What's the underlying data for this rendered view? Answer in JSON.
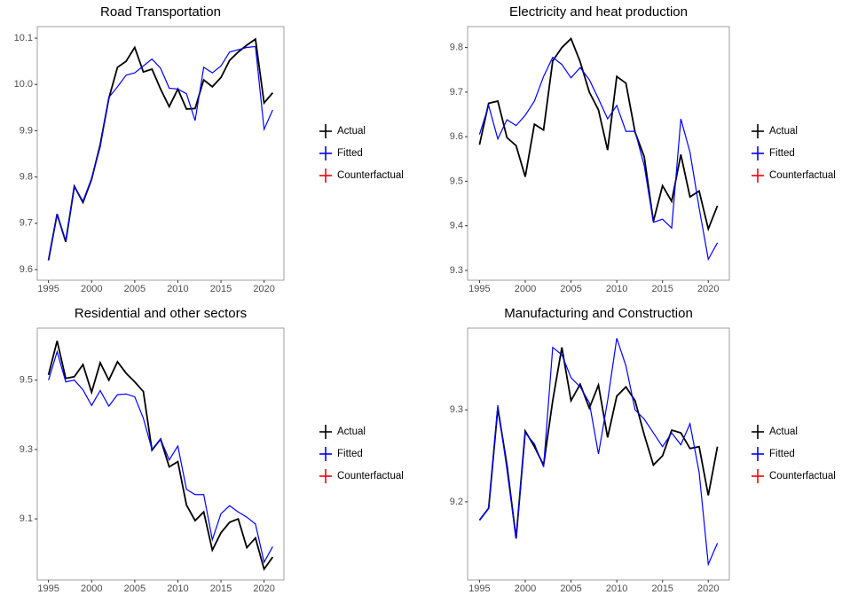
{
  "chart_data": [
    {
      "type": "line",
      "title": "Road Transportation",
      "x": [
        1995,
        1996,
        1997,
        1998,
        1999,
        2000,
        2001,
        2002,
        2003,
        2004,
        2005,
        2006,
        2007,
        2008,
        2009,
        2010,
        2011,
        2012,
        2013,
        2014,
        2015,
        2016,
        2017,
        2018,
        2019,
        2020,
        2021
      ],
      "series": [
        {
          "name": "Actual",
          "color": "#000000",
          "values": [
            9.62,
            9.72,
            9.66,
            9.78,
            9.745,
            9.795,
            9.87,
            9.97,
            10.037,
            10.05,
            10.08,
            10.027,
            10.033,
            9.99,
            9.952,
            9.99,
            9.947,
            9.948,
            10.01,
            9.995,
            10.015,
            10.052,
            10.07,
            10.085,
            10.098,
            9.96,
            9.982
          ]
        },
        {
          "name": "Fitted",
          "color": "#0000ff",
          "values": [
            9.62,
            9.72,
            9.662,
            9.778,
            9.748,
            9.797,
            9.865,
            9.972,
            9.995,
            10.02,
            10.025,
            10.04,
            10.055,
            10.035,
            9.992,
            9.99,
            9.98,
            9.922,
            10.037,
            10.025,
            10.04,
            10.07,
            10.075,
            10.08,
            10.082,
            9.903,
            9.945
          ]
        },
        {
          "name": "Counterfactual",
          "color": "#ff0000",
          "values": [
            null,
            null,
            null,
            null,
            null,
            null,
            null,
            null,
            null,
            null,
            null,
            null,
            null,
            null,
            null,
            null,
            null,
            null,
            null,
            null,
            null,
            null,
            null,
            null,
            null,
            null,
            null
          ]
        }
      ],
      "xlim": [
        1993.7,
        2022.3
      ],
      "xticks": [
        1995,
        2000,
        2005,
        2010,
        2015,
        2020
      ],
      "ylim": [
        9.577,
        10.125
      ],
      "yticks": [
        9.6,
        9.7,
        9.8,
        9.9,
        {
          "value": 10,
          "label": "10.0"
        },
        10.1
      ]
    },
    {
      "type": "line",
      "title": "Electricity and heat production",
      "x": [
        1995,
        1996,
        1997,
        1998,
        1999,
        2000,
        2001,
        2002,
        2003,
        2004,
        2005,
        2006,
        2007,
        2008,
        2009,
        2010,
        2011,
        2012,
        2013,
        2014,
        2015,
        2016,
        2017,
        2018,
        2019,
        2020,
        2021
      ],
      "series": [
        {
          "name": "Actual",
          "color": "#000000",
          "values": [
            9.582,
            9.675,
            9.68,
            9.598,
            9.58,
            9.51,
            9.628,
            9.615,
            9.77,
            9.8,
            9.82,
            9.768,
            9.7,
            9.66,
            9.57,
            9.735,
            9.72,
            9.61,
            9.555,
            9.41,
            9.49,
            9.455,
            9.56,
            9.465,
            9.478,
            9.393,
            9.445
          ]
        },
        {
          "name": "Fitted",
          "color": "#0000ff",
          "values": [
            9.605,
            9.67,
            9.595,
            9.638,
            9.625,
            9.648,
            9.68,
            9.735,
            9.778,
            9.762,
            9.732,
            9.755,
            9.728,
            9.685,
            9.64,
            9.67,
            9.612,
            9.612,
            9.535,
            9.408,
            9.415,
            9.395,
            9.64,
            9.565,
            9.44,
            9.325,
            9.362
          ]
        },
        {
          "name": "Counterfactual",
          "color": "#ff0000",
          "values": [
            null,
            null,
            null,
            null,
            null,
            null,
            null,
            null,
            null,
            null,
            null,
            null,
            null,
            null,
            null,
            null,
            null,
            null,
            null,
            null,
            null,
            null,
            null,
            null,
            null,
            null,
            null
          ]
        }
      ],
      "xlim": [
        1993.7,
        2022.3
      ],
      "xticks": [
        1995,
        2000,
        2005,
        2010,
        2015,
        2020
      ],
      "ylim": [
        9.278,
        9.847
      ],
      "yticks": [
        9.3,
        9.4,
        9.5,
        9.6,
        9.7,
        9.8
      ]
    },
    {
      "type": "line",
      "title": "Residential and other sectors",
      "x": [
        1995,
        1996,
        1997,
        1998,
        1999,
        2000,
        2001,
        2002,
        2003,
        2004,
        2005,
        2006,
        2007,
        2008,
        2009,
        2010,
        2011,
        2012,
        2013,
        2014,
        2015,
        2016,
        2017,
        2018,
        2019,
        2020,
        2021
      ],
      "series": [
        {
          "name": "Actual",
          "color": "#000000",
          "values": [
            9.515,
            9.613,
            9.505,
            9.51,
            9.545,
            9.465,
            9.55,
            9.5,
            9.553,
            9.52,
            9.495,
            9.467,
            9.298,
            9.33,
            9.25,
            9.265,
            9.14,
            9.095,
            9.12,
            9.01,
            9.06,
            9.09,
            9.1,
            9.017,
            9.045,
            8.955,
            8.99
          ]
        },
        {
          "name": "Fitted",
          "color": "#0000ff",
          "values": [
            9.5,
            9.582,
            9.495,
            9.5,
            9.472,
            9.427,
            9.47,
            9.425,
            9.458,
            9.46,
            9.452,
            9.39,
            9.3,
            9.33,
            9.27,
            9.31,
            9.185,
            9.17,
            9.17,
            9.04,
            9.115,
            9.138,
            9.12,
            9.105,
            9.085,
            8.975,
            9.02
          ]
        },
        {
          "name": "Counterfactual",
          "color": "#ff0000",
          "values": [
            null,
            null,
            null,
            null,
            null,
            null,
            null,
            null,
            null,
            null,
            null,
            null,
            null,
            null,
            null,
            null,
            null,
            null,
            null,
            null,
            null,
            null,
            null,
            null,
            null,
            null,
            null
          ]
        }
      ],
      "xlim": [
        1993.7,
        2022.3
      ],
      "xticks": [
        1995,
        2000,
        2005,
        2010,
        2015,
        2020
      ],
      "ylim": [
        8.924,
        9.65
      ],
      "yticks": [
        9.1,
        9.3,
        9.5
      ]
    },
    {
      "type": "line",
      "title": "Manufacturing and Construction",
      "x": [
        1995,
        1996,
        1997,
        1998,
        1999,
        2000,
        2001,
        2002,
        2003,
        2004,
        2005,
        2006,
        2007,
        2008,
        2009,
        2010,
        2011,
        2012,
        2013,
        2014,
        2015,
        2016,
        2017,
        2018,
        2019,
        2020,
        2021
      ],
      "series": [
        {
          "name": "Actual",
          "color": "#000000",
          "values": [
            9.18,
            9.193,
            9.302,
            9.24,
            9.16,
            9.277,
            9.26,
            9.24,
            9.31,
            9.368,
            9.31,
            9.328,
            9.302,
            9.327,
            9.27,
            9.315,
            9.325,
            9.31,
            9.273,
            9.24,
            9.25,
            9.278,
            9.275,
            9.258,
            9.26,
            9.207,
            9.26
          ]
        },
        {
          "name": "Fitted",
          "color": "#0000ff",
          "values": [
            9.18,
            9.193,
            9.305,
            9.235,
            9.16,
            9.275,
            9.263,
            9.238,
            9.368,
            9.36,
            9.335,
            9.325,
            9.308,
            9.252,
            9.31,
            9.378,
            9.348,
            9.3,
            9.29,
            9.275,
            9.26,
            9.275,
            9.262,
            9.285,
            9.232,
            9.132,
            9.155
          ]
        },
        {
          "name": "Counterfactual",
          "color": "#ff0000",
          "values": [
            null,
            null,
            null,
            null,
            null,
            null,
            null,
            null,
            null,
            null,
            null,
            null,
            null,
            null,
            null,
            null,
            null,
            null,
            null,
            null,
            null,
            null,
            null,
            null,
            null,
            null,
            null
          ]
        }
      ],
      "xlim": [
        1993.7,
        2022.3
      ],
      "xticks": [
        1995,
        2000,
        2005,
        2010,
        2015,
        2020
      ],
      "ylim": [
        9.115,
        9.389
      ],
      "yticks": [
        9.2,
        9.3
      ]
    }
  ]
}
